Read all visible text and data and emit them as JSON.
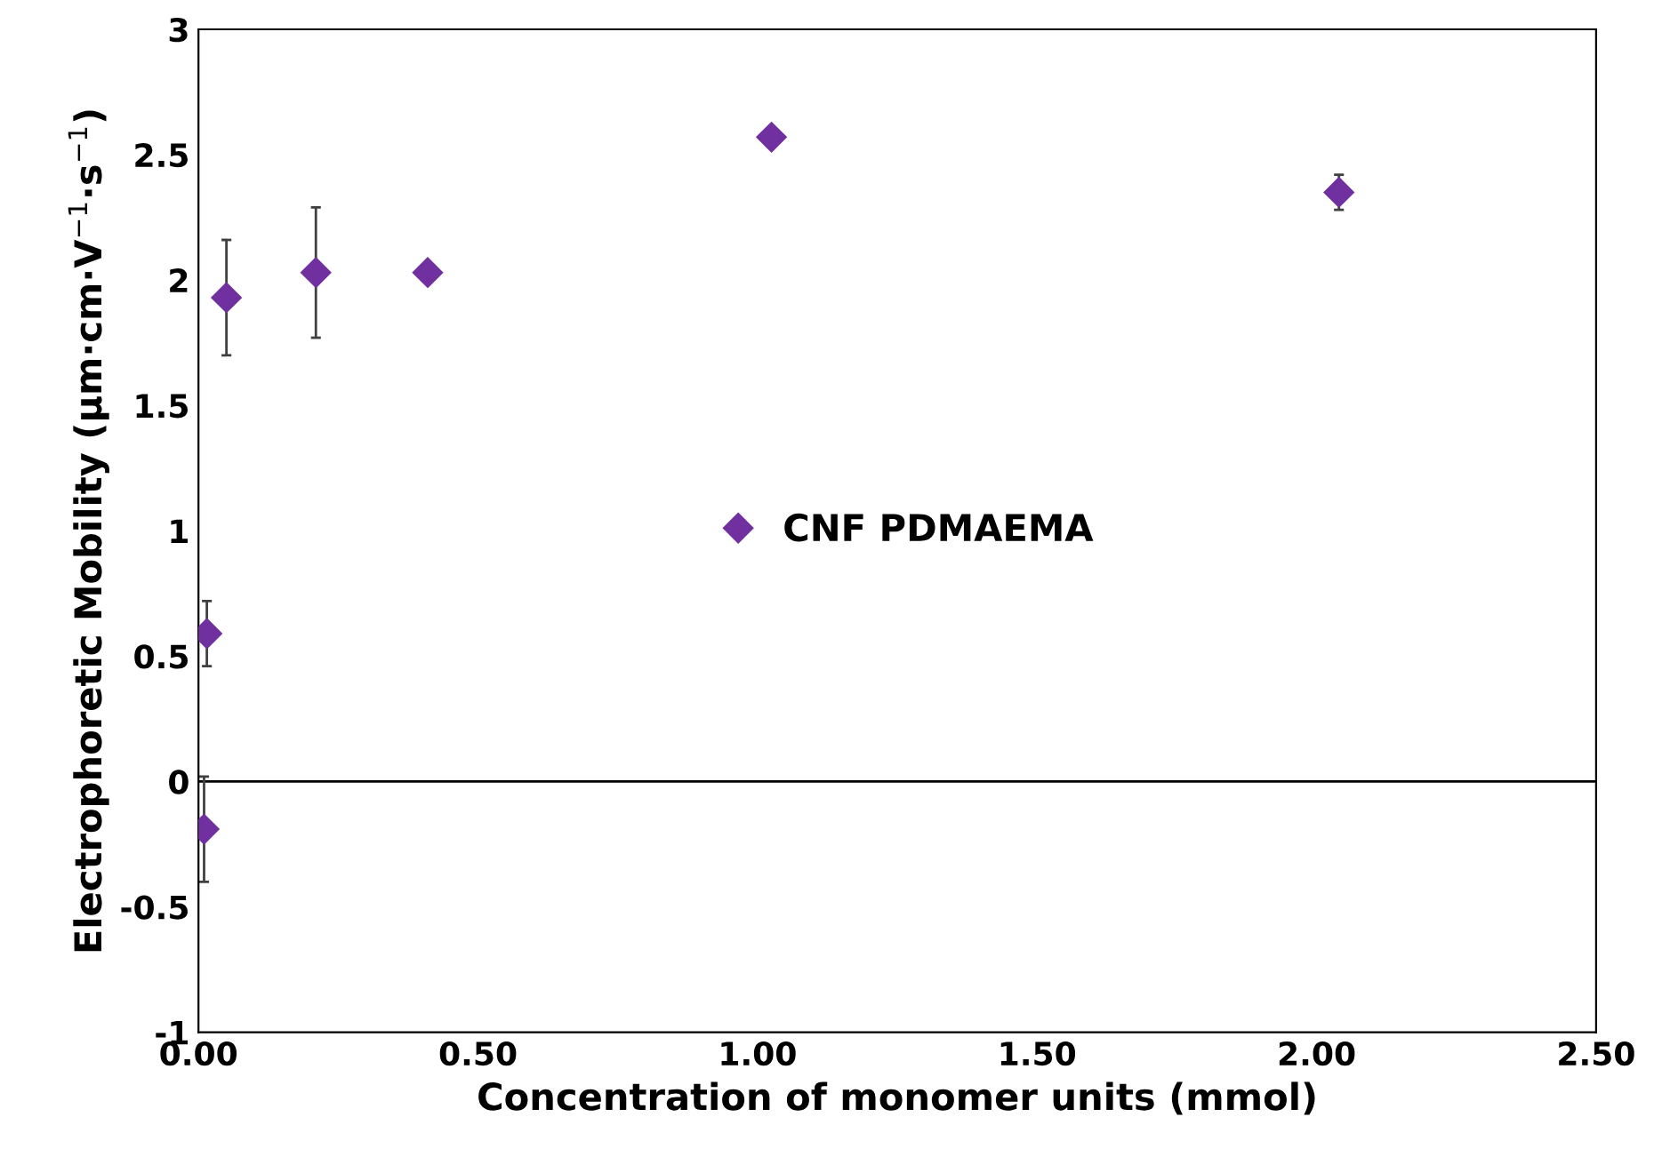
{
  "chart_data": {
    "type": "scatter",
    "xlabel": "Concentration of monomer units (mmol)",
    "ylabel": "Electrophoretic Mobility (µm·cm·V$^{−1}$·s$^{−1}$)",
    "series": [
      {
        "name": "CNF PDMAEMA",
        "color": "#7030a0",
        "x": [
          0.01,
          0.015,
          0.05,
          0.21,
          0.41,
          1.025,
          2.04
        ],
        "values": [
          -0.19,
          0.59,
          1.93,
          2.03,
          2.03,
          2.57,
          2.35
        ],
        "errors": [
          0.21,
          0.13,
          0.23,
          0.26,
          null,
          null,
          0.07
        ]
      }
    ],
    "marker": "diamond",
    "xlim": [
      0,
      2.5
    ],
    "xticks": [
      {
        "value": 0,
        "label": "0.00"
      },
      {
        "value": 0.5,
        "label": "0.50"
      },
      {
        "value": 1,
        "label": "1.00"
      },
      {
        "value": 1.5,
        "label": "1.50"
      },
      {
        "value": 2,
        "label": "2.00"
      },
      {
        "value": 2.5,
        "label": "2.50"
      }
    ],
    "ylim": [
      -1,
      3
    ],
    "yticks": [
      -1,
      -0.5,
      0,
      0.5,
      1,
      1.5,
      2,
      2.5,
      3
    ],
    "ref_lines": [
      {
        "axis": "y",
        "value": 0,
        "color": "#000000"
      }
    ],
    "grid": false,
    "legend": "center"
  }
}
